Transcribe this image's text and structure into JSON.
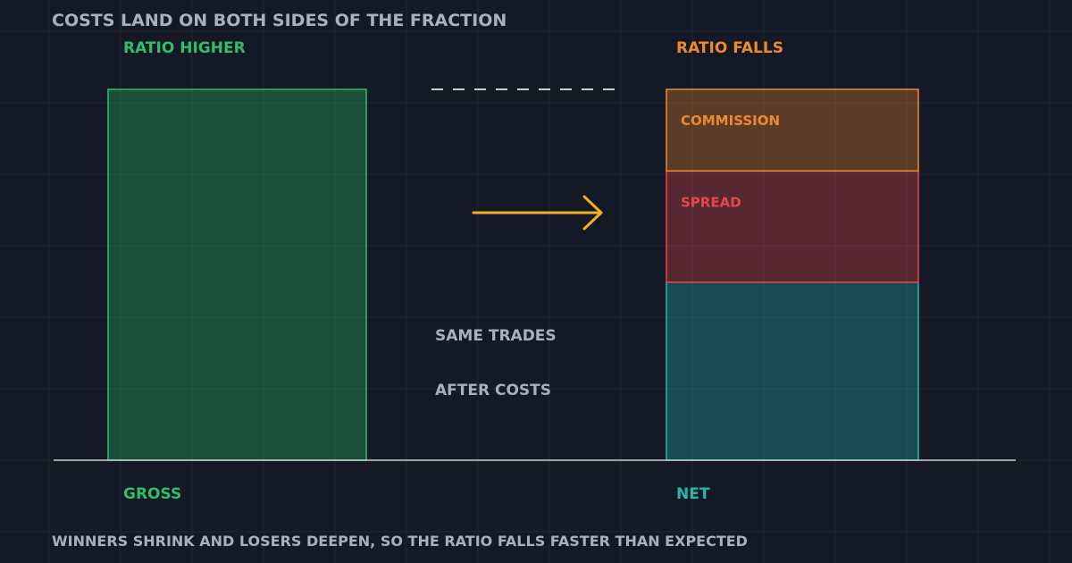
{
  "colors": {
    "background": "#141925",
    "grid": "#1f2634",
    "gross": "#2fbf6b",
    "commission": "#ef8a2c",
    "spread": "#e5484d",
    "net": "#22b8aa",
    "arrow": "#f2b01e",
    "muted_text": "#a9b0bd",
    "baseline": "#c9ced6"
  },
  "chart_data": {
    "type": "bar",
    "title": "COSTS LAND ON BOTH SIDES OF THE FRACTION",
    "footnote": "WINNERS SHRINK AND LOSERS DEEPEN, SO THE RATIO FALLS FASTER THAN EXPECTED",
    "ylim": [
      0,
      100
    ],
    "categories": [
      "GROSS",
      "NET"
    ],
    "bars": [
      {
        "category": "GROSS",
        "top_label": "RATIO HIGHER",
        "color_key": "gross",
        "segments": [
          {
            "name": "",
            "value": 100
          }
        ]
      },
      {
        "category": "NET",
        "top_label": "RATIO FALLS",
        "color_key": "net",
        "segments": [
          {
            "name": "",
            "value": 48,
            "color_key": "net"
          },
          {
            "name": "SPREAD",
            "value": 30,
            "color_key": "spread"
          },
          {
            "name": "COMMISSION",
            "value": 22,
            "color_key": "commission"
          }
        ]
      }
    ],
    "annotations": [
      "SAME TRADES",
      "AFTER COSTS"
    ],
    "reference_line": {
      "value": 100,
      "style": "dashed"
    },
    "grid": true
  }
}
